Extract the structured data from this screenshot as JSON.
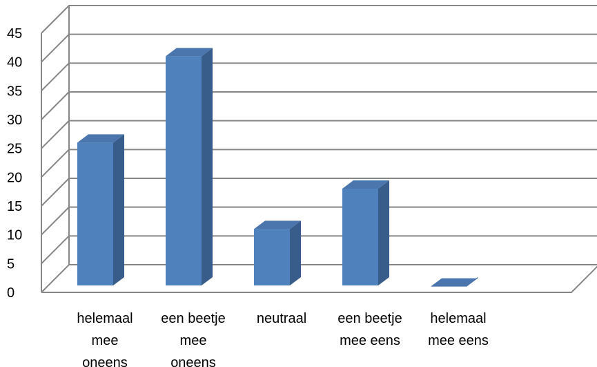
{
  "chart_data": {
    "type": "bar",
    "title": "",
    "xlabel": "",
    "ylabel": "",
    "categories": [
      [
        "helemaal",
        "mee",
        "oneens"
      ],
      [
        "een beetje",
        "mee",
        "oneens"
      ],
      [
        "neutraal"
      ],
      [
        "een beetje",
        "mee eens"
      ],
      [
        "helemaal",
        "mee eens"
      ]
    ],
    "values": [
      26,
      41,
      11,
      18,
      1
    ],
    "ylim": [
      0,
      45
    ],
    "yticks": [
      "0",
      "5",
      "10",
      "15",
      "20",
      "25",
      "30",
      "35",
      "40",
      "45"
    ],
    "grid": true,
    "legend": "none",
    "style": "3d-column",
    "colors": {
      "bar_front": "#4f81bd",
      "bar_side": "#385d8a",
      "bar_top": "#4a75ad",
      "grid": "#868686"
    }
  }
}
